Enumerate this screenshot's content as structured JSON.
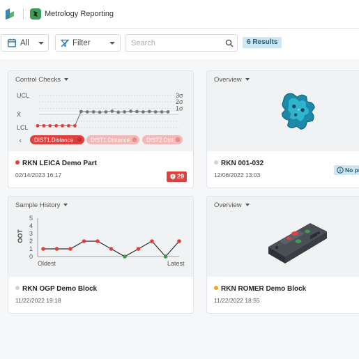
{
  "app": {
    "title": "Metrology Reporting",
    "brand_icon": "hexagon-logo-icon",
    "app_icon": "app-badge-icon",
    "accent": "#3e9b54"
  },
  "toolbar": {
    "scope_label": "All",
    "filter_label": "Filter",
    "search_placeholder": "Search",
    "search_value": "",
    "results_label": "6 Results"
  },
  "cards": [
    {
      "header": "Control Checks",
      "name": "RKN LEICA Demo Part",
      "date": "02/14/2023 16:17",
      "status_color": "#e0403e",
      "alert_count": "29",
      "chart_data": {
        "type": "line",
        "y_ticks": [
          "UCL",
          "X̄",
          "LCL"
        ],
        "sigma_labels": [
          "3σ",
          "2σ",
          "1σ"
        ],
        "values": [
          -1.7,
          -1.7,
          -1.7,
          -1.7,
          -1.7,
          -1.7,
          -1.7,
          0.5,
          0.45,
          0.45,
          0.4,
          0.45,
          0.55,
          0.4,
          0.45,
          0.55,
          0.5,
          0.45,
          0.5,
          0.45,
          0.45,
          0.45
        ],
        "point_colors": [
          "#e0403e",
          "#e0403e",
          "#e0403e",
          "#e0403e",
          "#e0403e",
          "#e0403e",
          "#e0403e",
          "#777",
          "#777",
          "#777",
          "#777",
          "#777",
          "#777",
          "#777",
          "#777",
          "#777",
          "#777",
          "#777",
          "#777",
          "#777",
          "#777",
          "#777"
        ],
        "ylim": [
          -2.2,
          3.2
        ]
      },
      "chips": [
        "DIST1.Distance",
        "DIST1.Distance",
        "DIST2.Dist"
      ]
    },
    {
      "header": "Overview",
      "name": "RKN 001-032",
      "date": "12/06/2022 13:03",
      "status_color": "#cfd3d8",
      "info_text": "No pr"
    },
    {
      "header": "Sample History",
      "name": "RKN OGP Demo Block",
      "date": "11/22/2022 19:18",
      "status_color": "#cfd3d8",
      "chart_data": {
        "type": "line",
        "ylabel": "OOT",
        "y_ticks": [
          0,
          1,
          2,
          3,
          4,
          5
        ],
        "ylim": [
          0,
          5
        ],
        "x_start_label": "Oldest",
        "x_end_label": "Latest",
        "values": [
          1,
          1,
          1,
          2,
          2,
          1,
          0,
          1,
          2,
          0,
          2
        ],
        "point_colors": [
          "#e0403e",
          "#e0403e",
          "#e0403e",
          "#e0403e",
          "#e0403e",
          "#e0403e",
          "#3e9b54",
          "#e0403e",
          "#e0403e",
          "#3e9b54",
          "#e0403e"
        ]
      }
    },
    {
      "header": "Overview",
      "name": "RKN ROMER Demo Block",
      "date": "11/22/2022 18:55",
      "status_color": "#f0a020"
    }
  ]
}
